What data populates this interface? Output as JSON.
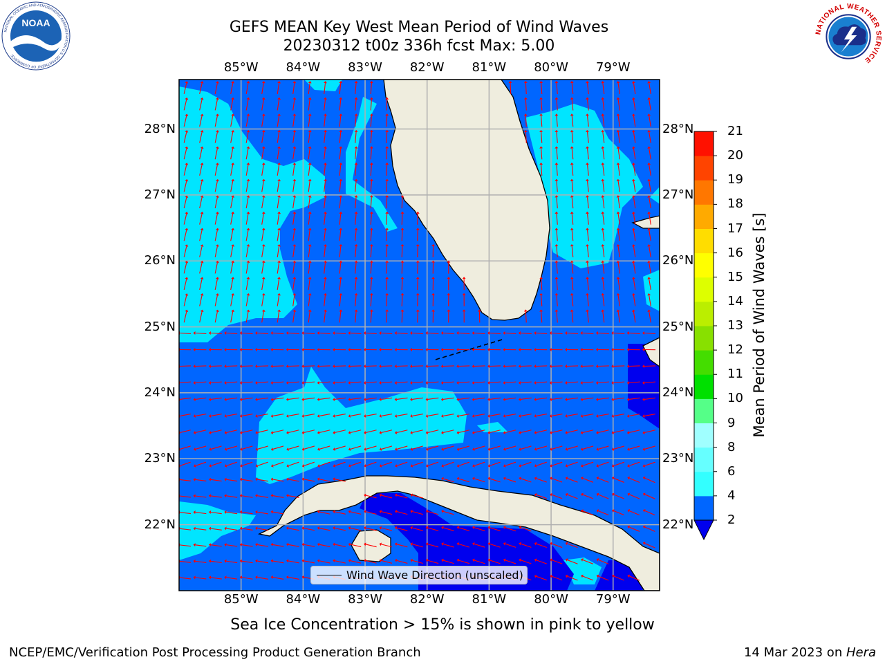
{
  "title": {
    "line1": "GEFS MEAN Key West Mean Period of Wind Waves",
    "line2": "20230312 t00z 336h fcst   Max: 5.00"
  },
  "map": {
    "lon_ticks": [
      "85°W",
      "84°W",
      "83°W",
      "82°W",
      "81°W",
      "80°W",
      "79°W"
    ],
    "lat_ticks": [
      "28°N",
      "27°N",
      "26°N",
      "25°N",
      "24°N",
      "23°N",
      "22°N"
    ],
    "lon_range": [
      -86,
      -78.25
    ],
    "lat_range": [
      21,
      28.75
    ],
    "arrow_color": "#ff0000",
    "land_color": "#efedde",
    "grid_color": "#b0b0b0"
  },
  "colorbar": {
    "label": "Mean Period of Wind Waves [s]",
    "ticks": [
      "2",
      "4",
      "6",
      "8",
      "9",
      "10",
      "11",
      "12",
      "13",
      "14",
      "15",
      "16",
      "17",
      "18",
      "19",
      "20",
      "21"
    ],
    "colors": [
      "#0066ff",
      "#00e5ff",
      "#33ffff",
      "#66ffff",
      "#a0ffff",
      "#55ff88",
      "#00e000",
      "#44dd00",
      "#88e000",
      "#bbee00",
      "#ddff00",
      "#ffff00",
      "#ffdd00",
      "#ffaa00",
      "#ff7700",
      "#ff4400",
      "#ff1100",
      "#ff0000"
    ],
    "under_color": "#0000ee"
  },
  "legend": {
    "label": "Wind Wave Direction (unscaled)"
  },
  "footnote": "Sea Ice Concentration > 15% is shown in pink to yellow",
  "credit_left": "NCEP/EMC/Verification Post Processing Product Generation Branch",
  "credit_right": {
    "date": "14 Mar 2023 on ",
    "host": "Hera"
  },
  "logos": {
    "noaa": {
      "text": "NOAA",
      "ring": "NATIONAL OCEANIC AND ATMOSPHERIC ADMINISTRATION",
      "bottom": "U.S. DEPARTMENT OF COMMERCE"
    },
    "nws": {
      "ring": "NATIONAL WEATHER SERVICE"
    }
  }
}
